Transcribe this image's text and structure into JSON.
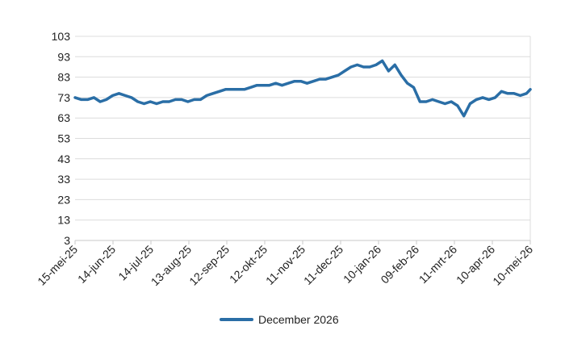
{
  "chart_data": {
    "type": "line",
    "ylim": [
      3,
      103
    ],
    "yticks": [
      3,
      13,
      23,
      33,
      43,
      53,
      63,
      73,
      83,
      93,
      103
    ],
    "xticks": [
      "15-mei-25",
      "14-jun-25",
      "14-jul-25",
      "13-aug-25",
      "12-sep-25",
      "12-okt-25",
      "11-nov-25",
      "11-dec-25",
      "10-jan-26",
      "09-feb-26",
      "11-mrt-26",
      "10-apr-26",
      "10-mei-26"
    ],
    "grid": true,
    "legend_position": "bottom",
    "colors": {
      "series": "#2a6ea6",
      "grid": "#dcdcdc",
      "axis": "#c8c8c8"
    },
    "series": [
      {
        "name": "December 2026",
        "x": [
          "2025-05-15",
          "2025-05-20",
          "2025-05-25",
          "2025-05-30",
          "2025-06-04",
          "2025-06-09",
          "2025-06-14",
          "2025-06-19",
          "2025-06-24",
          "2025-06-29",
          "2025-07-04",
          "2025-07-09",
          "2025-07-14",
          "2025-07-19",
          "2025-07-24",
          "2025-07-29",
          "2025-08-03",
          "2025-08-08",
          "2025-08-13",
          "2025-08-18",
          "2025-08-23",
          "2025-08-28",
          "2025-09-02",
          "2025-09-07",
          "2025-09-12",
          "2025-09-17",
          "2025-09-22",
          "2025-09-27",
          "2025-10-02",
          "2025-10-07",
          "2025-10-12",
          "2025-10-17",
          "2025-10-22",
          "2025-10-27",
          "2025-11-01",
          "2025-11-06",
          "2025-11-11",
          "2025-11-16",
          "2025-11-21",
          "2025-11-26",
          "2025-12-01",
          "2025-12-06",
          "2025-12-11",
          "2025-12-16",
          "2025-12-21",
          "2025-12-26",
          "2025-12-31",
          "2026-01-05",
          "2026-01-10",
          "2026-01-15",
          "2026-01-20",
          "2026-01-25",
          "2026-01-30",
          "2026-02-04",
          "2026-02-09",
          "2026-02-14",
          "2026-02-19",
          "2026-02-24",
          "2026-03-01",
          "2026-03-06",
          "2026-03-11",
          "2026-03-16",
          "2026-03-21",
          "2026-03-26",
          "2026-03-31",
          "2026-04-05",
          "2026-04-10",
          "2026-04-15",
          "2026-04-20",
          "2026-04-25",
          "2026-04-30",
          "2026-05-05",
          "2026-05-10",
          "2026-05-13"
        ],
        "values": [
          73,
          72,
          72,
          73,
          71,
          72,
          74,
          75,
          74,
          73,
          71,
          70,
          71,
          70,
          71,
          71,
          72,
          72,
          71,
          72,
          72,
          74,
          75,
          76,
          77,
          77,
          77,
          77,
          78,
          79,
          79,
          79,
          80,
          79,
          80,
          81,
          81,
          80,
          81,
          82,
          82,
          83,
          84,
          86,
          88,
          89,
          88,
          88,
          89,
          91,
          86,
          89,
          84,
          80,
          78,
          71,
          71,
          72,
          71,
          70,
          71,
          69,
          64,
          70,
          72,
          73,
          72,
          73,
          76,
          75,
          75,
          74,
          75,
          77
        ]
      }
    ]
  }
}
